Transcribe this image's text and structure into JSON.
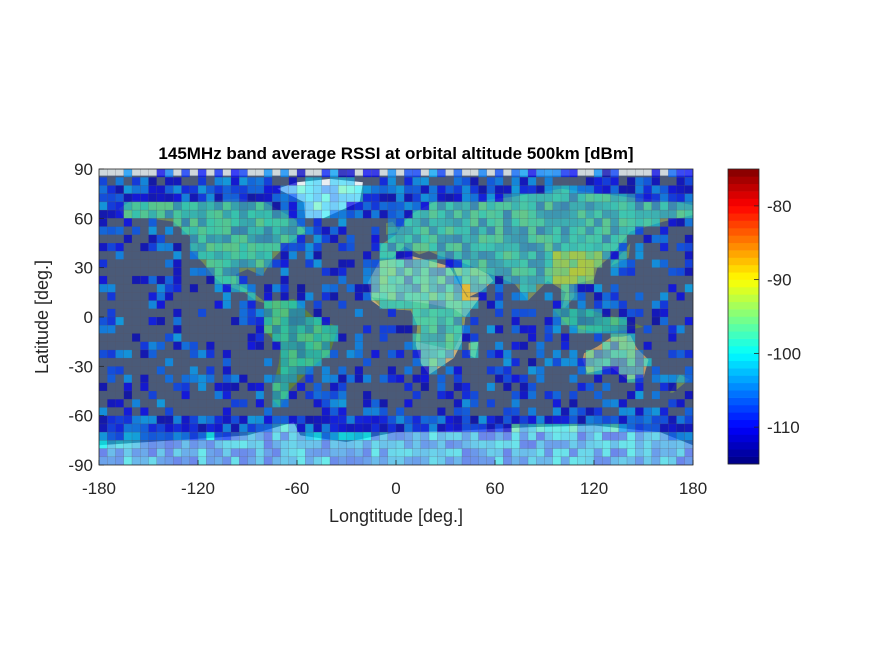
{
  "chart_data": {
    "type": "heatmap",
    "title": "145MHz band average RSSI at orbital altitude 500km [dBm]",
    "xlabel": "Longtitude [deg.]",
    "ylabel": "Latitude [deg.]",
    "xlim": [
      -180,
      180
    ],
    "ylim": [
      -90,
      90
    ],
    "xticks": [
      "-180",
      "-120",
      "-60",
      "0",
      "60",
      "120",
      "180"
    ],
    "yticks": [
      "90",
      "60",
      "30",
      "0",
      "-30",
      "-60",
      "-90"
    ],
    "grid_resolution_deg": 5,
    "background": "world map (satellite imagery)",
    "colormap": "jet",
    "colorbar": {
      "range": [
        -115,
        -75
      ],
      "ticks": [
        "-80",
        "-90",
        "-100",
        "-110"
      ],
      "levels": 40
    },
    "typical_values_dBm": {
      "open_ocean": -108,
      "land_typical": -101,
      "east_asia_hotspot": -94,
      "peak_hotspot": -88,
      "polar_regions": -104
    }
  },
  "colors": {
    "ocean_bg": "#4a5a78",
    "antarctica": "#c9c9c9",
    "grid_line": "#555566"
  }
}
